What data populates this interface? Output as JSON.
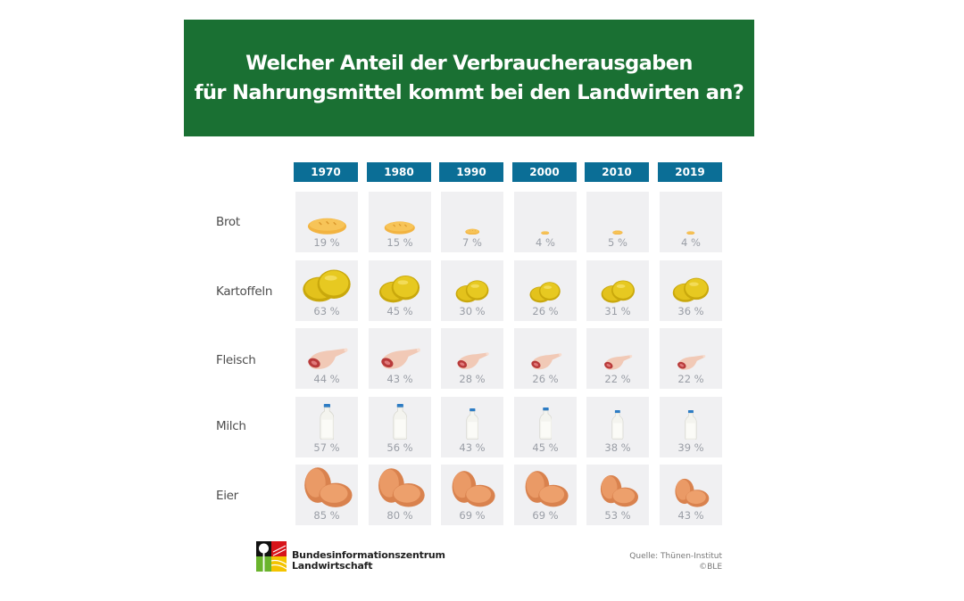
{
  "title": {
    "line1": "Welcher Anteil der Verbraucherausgaben",
    "line2": "für Nahrungsmittel kommt bei den Landwirten an?"
  },
  "colors": {
    "banner_green": "#1a7033",
    "year_header_blue": "#0b6e96",
    "cell_bg": "#f0f0f2",
    "pct_text": "#9a9ea6"
  },
  "years": [
    "1970",
    "1980",
    "1990",
    "2000",
    "2010",
    "2019"
  ],
  "rows": [
    {
      "label": "Brot",
      "icon": "bread-icon",
      "values": [
        "19 %",
        "15 %",
        "7 %",
        "4 %",
        "5 %",
        "4 %"
      ]
    },
    {
      "label": "Kartoffeln",
      "icon": "potato-icon",
      "values": [
        "63 %",
        "45 %",
        "30 %",
        "26 %",
        "31 %",
        "36 %"
      ]
    },
    {
      "label": "Fleisch",
      "icon": "meat-icon",
      "values": [
        "44 %",
        "43 %",
        "28 %",
        "26 %",
        "22 %",
        "22 %"
      ]
    },
    {
      "label": "Milch",
      "icon": "milk-bottle-icon",
      "values": [
        "57 %",
        "56 %",
        "43 %",
        "45 %",
        "38 %",
        "39 %"
      ]
    },
    {
      "label": "Eier",
      "icon": "eggs-icon",
      "values": [
        "85 %",
        "80 %",
        "69 %",
        "69 %",
        "53 %",
        "43 %"
      ]
    }
  ],
  "footer": {
    "org_line1": "Bundesinformationszentrum",
    "org_line2": "Landwirtschaft",
    "source_line1": "Quelle: Thünen-Institut",
    "source_line2": "©BLE"
  },
  "chart_data": {
    "type": "table",
    "title": "Welcher Anteil der Verbraucherausgaben für Nahrungsmittel kommt bei den Landwirten an?",
    "categories": [
      "1970",
      "1980",
      "1990",
      "2000",
      "2010",
      "2019"
    ],
    "unit": "%",
    "series": [
      {
        "name": "Brot",
        "values": [
          19,
          15,
          7,
          4,
          5,
          4
        ]
      },
      {
        "name": "Kartoffeln",
        "values": [
          63,
          45,
          30,
          26,
          31,
          36
        ]
      },
      {
        "name": "Fleisch",
        "values": [
          44,
          43,
          28,
          26,
          22,
          22
        ]
      },
      {
        "name": "Milch",
        "values": [
          57,
          56,
          43,
          45,
          38,
          39
        ]
      },
      {
        "name": "Eier",
        "values": [
          85,
          80,
          69,
          69,
          53,
          43
        ]
      }
    ],
    "encoding": "icon size scales with percentage",
    "source": "Quelle: Thünen-Institut, ©BLE"
  }
}
